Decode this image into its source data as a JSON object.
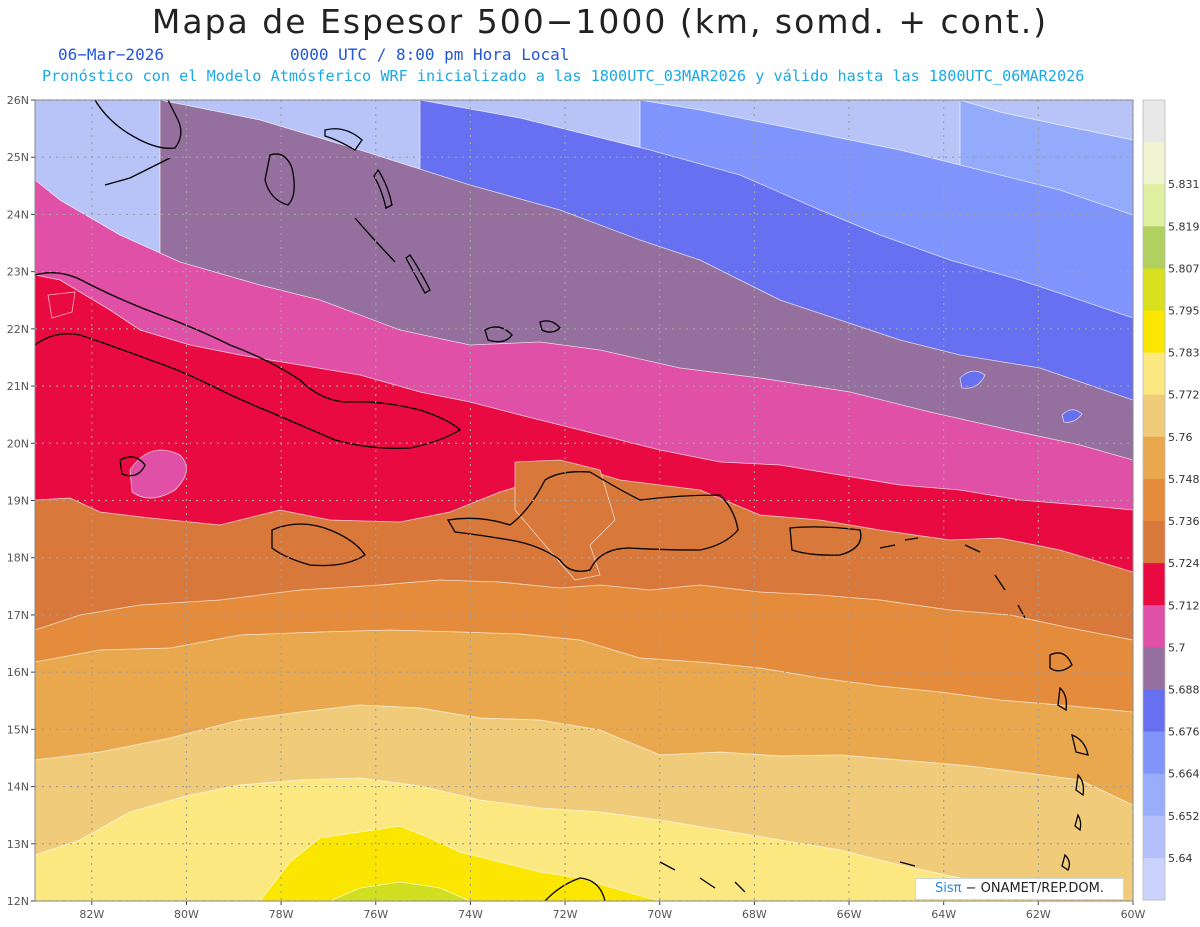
{
  "header": {
    "title": "Mapa de Espesor 500−1000 (km, somd. + cont.)",
    "date": "06−Mar−2026",
    "time": "0000 UTC / 8:00 pm Hora Local",
    "forecast": "Pronóstico con el Modelo Atmósferico WRF inicializado a las 1800UTC_03MAR2026 y válido hasta las  1800UTC_06MAR2026"
  },
  "map": {
    "lat_labels": [
      "26N",
      "25N",
      "24N",
      "23N",
      "22N",
      "21N",
      "20N",
      "19N",
      "18N",
      "17N",
      "16N",
      "15N",
      "14N",
      "13N",
      "12N"
    ],
    "lon_labels": [
      "82W",
      "80W",
      "78W",
      "76W",
      "74W",
      "72W",
      "70W",
      "68W",
      "66W",
      "64W",
      "62W",
      "60W"
    ],
    "lat_range": [
      12,
      26
    ],
    "lon_range": [
      -83.2,
      -60
    ],
    "grid": true,
    "band_colors": [
      "#b8c4f8",
      "#94aafb",
      "#7f94fc",
      "#6670f0",
      "#95709e",
      "#e050a6",
      "#e80a40",
      "#d8783a",
      "#e48c3c",
      "#eaa84e",
      "#f0cc7a",
      "#fce880",
      "#fae600",
      "#d0e020"
    ]
  },
  "colorbar": {
    "labels": [
      "5.64",
      "5.652",
      "5.664",
      "5.676",
      "5.688",
      "5.7",
      "5.712",
      "5.724",
      "5.736",
      "5.748",
      "5.76",
      "5.772",
      "5.783",
      "5.795",
      "5.807",
      "5.819",
      "5.831"
    ],
    "colors": [
      "#cbd2fb",
      "#b4c0fb",
      "#98aefb",
      "#7f95fa",
      "#6670f0",
      "#95709e",
      "#e050a6",
      "#e80a40",
      "#d8783a",
      "#e48c3c",
      "#eaa84e",
      "#f0cc7a",
      "#fce880",
      "#fae600",
      "#d8e020",
      "#b0d060",
      "#e0f0a0",
      "#f0f4d0",
      "#e8e8e8"
    ]
  },
  "credit": {
    "sis": "Sisπ",
    "org": " − ONAMET/REP.DOM."
  }
}
